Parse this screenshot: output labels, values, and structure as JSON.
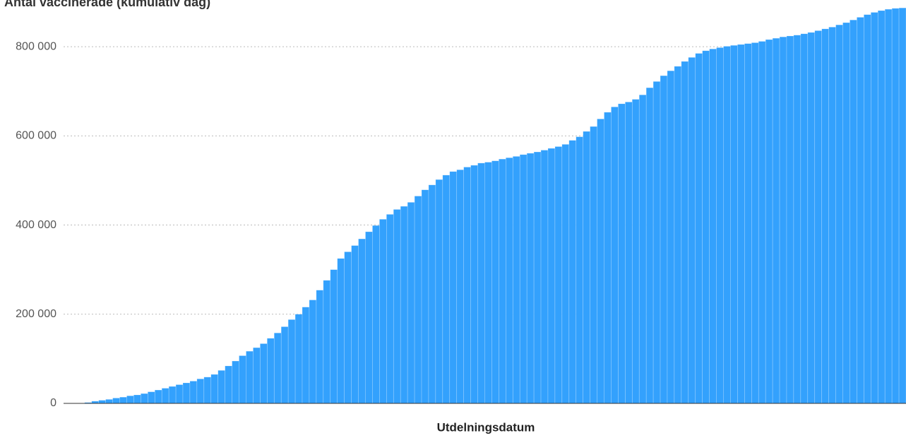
{
  "chart_data": {
    "type": "bar",
    "title": "Antal vaccinerade (kumulativ dag)",
    "x_label": "Utdelningsdatum",
    "color": "#33a1fd",
    "grid": true,
    "ylim": [
      0,
      900000
    ],
    "yticks": [
      0,
      {
        "value": 200000,
        "label": "200 000"
      },
      {
        "value": 400000,
        "label": "400 000"
      },
      {
        "value": 600000,
        "label": "600 000"
      },
      {
        "value": 800000,
        "label": "800 000"
      }
    ],
    "categories": [
      null,
      null,
      null,
      null,
      null,
      null,
      null,
      null,
      null,
      null,
      null,
      null,
      null,
      null,
      null,
      null,
      null,
      null,
      null,
      null,
      null,
      null,
      null,
      null,
      null,
      null,
      null,
      null,
      null,
      null,
      null,
      null,
      null,
      null,
      null,
      null,
      null,
      null,
      null,
      null,
      null,
      null,
      null,
      null,
      null,
      null,
      null,
      null,
      null,
      null,
      null,
      null,
      null,
      null,
      null,
      null,
      null,
      null,
      null,
      null,
      null,
      null,
      null,
      null,
      null,
      null,
      null,
      null,
      null,
      null,
      null,
      null,
      null,
      null,
      null,
      null,
      null,
      null,
      null,
      null,
      null,
      null,
      null,
      null,
      null,
      null,
      null,
      null,
      null,
      null,
      null,
      null,
      null,
      null,
      null,
      null,
      null,
      null,
      null,
      null,
      null,
      null,
      null,
      null,
      null,
      null,
      null,
      null,
      null,
      null,
      null,
      null,
      null,
      null,
      null,
      null,
      null,
      null,
      null,
      null
    ],
    "values": [
      0,
      0,
      0,
      2000,
      5000,
      7000,
      9000,
      12000,
      14000,
      17000,
      19000,
      22000,
      26000,
      30000,
      34000,
      38000,
      42000,
      46000,
      50000,
      55000,
      59000,
      65000,
      74000,
      84000,
      95000,
      107000,
      117000,
      125000,
      134000,
      146000,
      158000,
      172000,
      188000,
      200000,
      216000,
      232000,
      254000,
      276000,
      300000,
      325000,
      340000,
      354000,
      369000,
      385000,
      399000,
      413000,
      424000,
      435000,
      442000,
      451000,
      465000,
      479000,
      490000,
      502000,
      512000,
      520000,
      524000,
      530000,
      534000,
      539000,
      541000,
      544000,
      548000,
      551000,
      554000,
      558000,
      561000,
      564000,
      568000,
      572000,
      576000,
      581000,
      590000,
      598000,
      610000,
      621000,
      638000,
      653000,
      665000,
      672000,
      676000,
      682000,
      692000,
      708000,
      722000,
      735000,
      746000,
      756000,
      767000,
      776000,
      785000,
      791000,
      795000,
      798000,
      801000,
      803000,
      805000,
      807000,
      809000,
      812000,
      816000,
      819000,
      822000,
      824000,
      826000,
      829000,
      832000,
      836000,
      840000,
      844000,
      849000,
      854000,
      860000,
      866000,
      872000,
      877000,
      881000,
      884000,
      886000,
      887000
    ]
  }
}
